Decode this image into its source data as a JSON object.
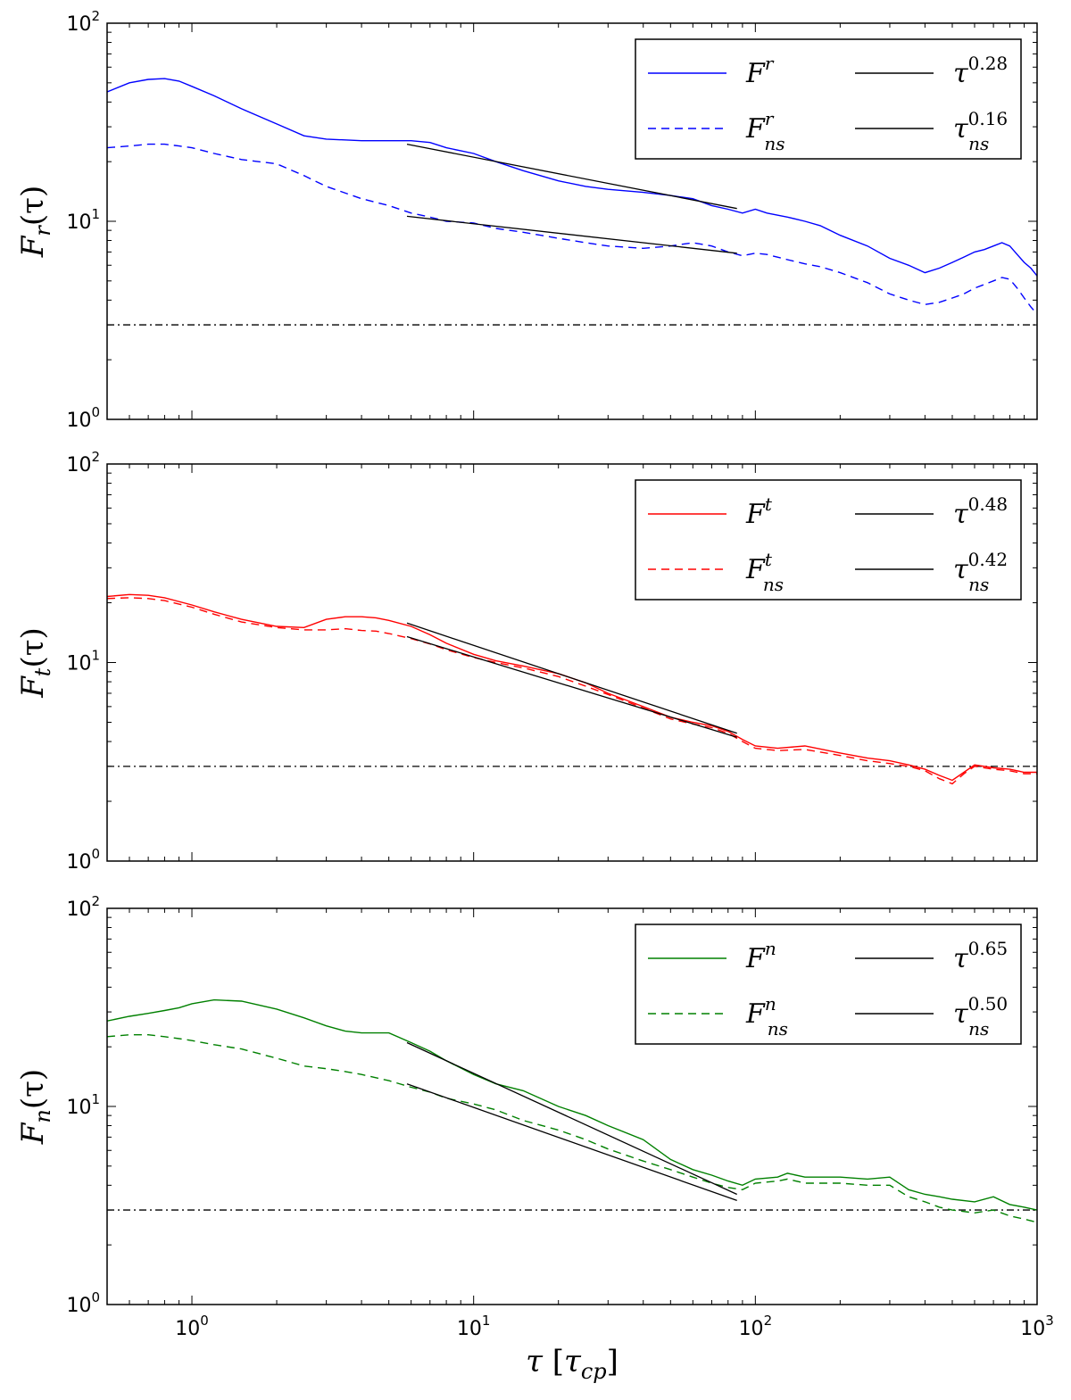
{
  "chart_data": [
    {
      "type": "line",
      "ylabel": {
        "main": "F",
        "sub": "r",
        "suffix": "(τ)"
      },
      "xscale": "log",
      "yscale": "log",
      "xlim": [
        0.5,
        1000
      ],
      "ylim": [
        1,
        100
      ],
      "legend": "top-right",
      "reference_line": 3,
      "series": [
        {
          "label": "F",
          "sup": "r",
          "sub": "",
          "style": "solid",
          "color": "#0000ff",
          "x": [
            0.5,
            0.6,
            0.7,
            0.8,
            0.9,
            1.0,
            1.2,
            1.5,
            2.0,
            2.5,
            3.0,
            4.0,
            5.0,
            6.0,
            7.0,
            8.0,
            10,
            12,
            15,
            20,
            25,
            30,
            40,
            50,
            60,
            70,
            80,
            90,
            100,
            110,
            130,
            150,
            170,
            200,
            250,
            300,
            350,
            400,
            450,
            500,
            550,
            600,
            650,
            700,
            750,
            800,
            850,
            900,
            950,
            1000
          ],
          "y": [
            45,
            50,
            52,
            52.5,
            51,
            48,
            43,
            37,
            31,
            27,
            26,
            25.5,
            25.5,
            25.5,
            25,
            23.5,
            22,
            20,
            18,
            16,
            15,
            14.5,
            14,
            13.5,
            13,
            12,
            11.5,
            11,
            11.5,
            11,
            10.5,
            10,
            9.5,
            8.5,
            7.5,
            6.5,
            6,
            5.5,
            5.8,
            6.2,
            6.6,
            7,
            7.2,
            7.5,
            7.8,
            7.5,
            6.8,
            6.2,
            5.8,
            5.3
          ]
        },
        {
          "label": "F",
          "sup": "r",
          "sub": "ns",
          "style": "dashed",
          "color": "#0000ff",
          "x": [
            0.5,
            0.6,
            0.7,
            0.8,
            0.9,
            1.0,
            1.2,
            1.5,
            2.0,
            2.5,
            3.0,
            4.0,
            5.0,
            6.0,
            7.0,
            8.0,
            10,
            12,
            15,
            20,
            25,
            30,
            40,
            50,
            60,
            70,
            80,
            90,
            100,
            110,
            130,
            150,
            170,
            200,
            250,
            300,
            350,
            400,
            450,
            500,
            550,
            600,
            650,
            700,
            750,
            800,
            850,
            900,
            950,
            1000
          ],
          "y": [
            23.5,
            24,
            24.5,
            24.5,
            24,
            23.5,
            22,
            20.5,
            19.5,
            17,
            15,
            13,
            12,
            11,
            10.5,
            10,
            9.8,
            9.2,
            8.8,
            8.2,
            7.8,
            7.5,
            7.3,
            7.5,
            7.8,
            7.5,
            7,
            6.7,
            6.9,
            6.8,
            6.4,
            6.1,
            5.9,
            5.5,
            4.9,
            4.3,
            4,
            3.8,
            3.9,
            4.1,
            4.3,
            4.6,
            4.8,
            5,
            5.2,
            5.1,
            4.6,
            4.1,
            3.7,
            3.4
          ]
        },
        {
          "label": "τ",
          "sup": "0.28",
          "sub": "",
          "style": "solid",
          "color": "#000000",
          "x": [
            5.8,
            86
          ],
          "y": [
            24.5,
            11.6
          ]
        },
        {
          "label": "τ",
          "sup": "0.16",
          "sub": "ns",
          "style": "solid",
          "color": "#000000",
          "x": [
            5.8,
            86
          ],
          "y": [
            10.6,
            6.9
          ]
        }
      ]
    },
    {
      "type": "line",
      "ylabel": {
        "main": "F",
        "sub": "t",
        "suffix": "(τ)"
      },
      "xscale": "log",
      "yscale": "log",
      "xlim": [
        0.5,
        1000
      ],
      "ylim": [
        1,
        100
      ],
      "legend": "top-right",
      "reference_line": 3,
      "series": [
        {
          "label": "F",
          "sup": "t",
          "sub": "",
          "style": "solid",
          "color": "#ff0000",
          "x": [
            0.5,
            0.6,
            0.7,
            0.8,
            1.0,
            1.2,
            1.5,
            2.0,
            2.5,
            3.0,
            3.5,
            4.0,
            4.5,
            5.0,
            6.0,
            7.0,
            8.0,
            10,
            12,
            15,
            20,
            25,
            30,
            40,
            50,
            60,
            70,
            80,
            90,
            100,
            120,
            150,
            200,
            250,
            300,
            350,
            400,
            450,
            500,
            550,
            600,
            700,
            800,
            900,
            1000
          ],
          "y": [
            21.5,
            22,
            21.8,
            21.2,
            19.5,
            18,
            16.5,
            15.2,
            15,
            16.5,
            17,
            17,
            16.8,
            16.3,
            15.2,
            13.8,
            12.5,
            11,
            10.2,
            9.6,
            8.8,
            7.9,
            7,
            6,
            5.3,
            5,
            4.8,
            4.5,
            4.1,
            3.8,
            3.7,
            3.8,
            3.5,
            3.3,
            3.2,
            3.05,
            2.9,
            2.7,
            2.55,
            2.8,
            3.05,
            2.95,
            2.9,
            2.8,
            2.8
          ]
        },
        {
          "label": "F",
          "sup": "t",
          "sub": "ns",
          "style": "dashed",
          "color": "#ff0000",
          "x": [
            0.5,
            0.6,
            0.7,
            0.8,
            1.0,
            1.2,
            1.5,
            2.0,
            2.5,
            3.0,
            3.5,
            4.0,
            4.5,
            5.0,
            6.0,
            7.0,
            8.0,
            10,
            12,
            15,
            20,
            25,
            30,
            40,
            50,
            60,
            70,
            80,
            90,
            100,
            120,
            150,
            200,
            250,
            300,
            350,
            400,
            450,
            500,
            550,
            600,
            700,
            800,
            900,
            1000
          ],
          "y": [
            21,
            21.2,
            21,
            20.5,
            19,
            17.5,
            16,
            15,
            14.6,
            14.6,
            14.8,
            14.5,
            14.4,
            14,
            13.2,
            12.4,
            11.6,
            10.6,
            10,
            9.4,
            8.5,
            7.6,
            6.9,
            5.9,
            5.2,
            4.9,
            4.7,
            4.4,
            4,
            3.7,
            3.6,
            3.65,
            3.4,
            3.2,
            3.1,
            3,
            2.85,
            2.6,
            2.45,
            2.75,
            3,
            2.9,
            2.85,
            2.75,
            2.75
          ]
        },
        {
          "label": "τ",
          "sup": "0.48",
          "sub": "",
          "style": "solid",
          "color": "#000000",
          "x": [
            5.8,
            86
          ],
          "y": [
            15.8,
            4.4
          ]
        },
        {
          "label": "τ",
          "sup": "0.42",
          "sub": "ns",
          "style": "solid",
          "color": "#000000",
          "x": [
            5.8,
            86
          ],
          "y": [
            13.5,
            4.2
          ]
        }
      ]
    },
    {
      "type": "line",
      "ylabel": {
        "main": "F",
        "sub": "n",
        "suffix": "(τ)"
      },
      "xscale": "log",
      "yscale": "log",
      "xlim": [
        0.5,
        1000
      ],
      "ylim": [
        1,
        100
      ],
      "legend": "top-right",
      "reference_line": 3,
      "series": [
        {
          "label": "F",
          "sup": "n",
          "sub": "",
          "style": "solid",
          "color": "#008000",
          "x": [
            0.5,
            0.6,
            0.7,
            0.8,
            0.9,
            1.0,
            1.2,
            1.5,
            2.0,
            2.5,
            3.0,
            3.5,
            4.0,
            5.0,
            6.0,
            7.0,
            8.0,
            10,
            12,
            15,
            20,
            25,
            30,
            40,
            50,
            60,
            70,
            80,
            90,
            100,
            120,
            130,
            150,
            200,
            250,
            300,
            350,
            400,
            450,
            500,
            600,
            700,
            800,
            900,
            1000
          ],
          "y": [
            27,
            28.5,
            29.5,
            30.5,
            31.5,
            33,
            34.5,
            34,
            31,
            28,
            25.5,
            24,
            23.5,
            23.5,
            21,
            19,
            17,
            14.5,
            13,
            12,
            10,
            9,
            8,
            6.8,
            5.4,
            4.8,
            4.5,
            4.2,
            4,
            4.3,
            4.4,
            4.6,
            4.4,
            4.4,
            4.3,
            4.4,
            3.8,
            3.6,
            3.5,
            3.4,
            3.3,
            3.5,
            3.2,
            3.1,
            3
          ]
        },
        {
          "label": "F",
          "sup": "n",
          "sub": "ns",
          "style": "dashed",
          "color": "#008000",
          "x": [
            0.5,
            0.6,
            0.7,
            0.8,
            0.9,
            1.0,
            1.2,
            1.5,
            2.0,
            2.5,
            3.0,
            3.5,
            4.0,
            5.0,
            6.0,
            7.0,
            8.0,
            10,
            12,
            15,
            20,
            25,
            30,
            40,
            50,
            60,
            70,
            80,
            90,
            100,
            120,
            130,
            150,
            200,
            250,
            300,
            350,
            400,
            450,
            500,
            600,
            700,
            800,
            900,
            1000
          ],
          "y": [
            22.5,
            23,
            23,
            22.5,
            22,
            21.5,
            20.5,
            19.5,
            17.5,
            16,
            15.5,
            15,
            14.5,
            13.5,
            12.5,
            11.8,
            11,
            10.3,
            9.6,
            8.5,
            7.6,
            6.8,
            6.1,
            5.3,
            4.8,
            4.4,
            4.1,
            3.9,
            3.8,
            4.1,
            4.2,
            4.3,
            4.1,
            4.1,
            4,
            4,
            3.5,
            3.3,
            3.1,
            3,
            2.9,
            3,
            2.8,
            2.7,
            2.6
          ]
        },
        {
          "label": "τ",
          "sup": "0.65",
          "sub": "",
          "style": "solid",
          "color": "#000000",
          "x": [
            5.8,
            86
          ],
          "y": [
            21,
            3.6
          ]
        },
        {
          "label": "τ",
          "sup": "0.50",
          "sub": "ns",
          "style": "solid",
          "color": "#000000",
          "x": [
            5.8,
            86
          ],
          "y": [
            13,
            3.35
          ]
        }
      ]
    }
  ],
  "x_axis": {
    "label": {
      "main": "τ",
      "bracket_open": "[",
      "inner": "τ",
      "sub": "cp",
      "bracket_close": "]"
    },
    "tick_labels": [
      {
        "value": 1,
        "base": "10",
        "exp": "0"
      },
      {
        "value": 10,
        "base": "10",
        "exp": "1"
      },
      {
        "value": 100,
        "base": "10",
        "exp": "2"
      },
      {
        "value": 1000,
        "base": "10",
        "exp": "3"
      }
    ]
  },
  "y_axis": {
    "tick_labels": [
      {
        "value": 1,
        "base": "10",
        "exp": "0"
      },
      {
        "value": 10,
        "base": "10",
        "exp": "1"
      },
      {
        "value": 100,
        "base": "10",
        "exp": "2"
      }
    ]
  }
}
